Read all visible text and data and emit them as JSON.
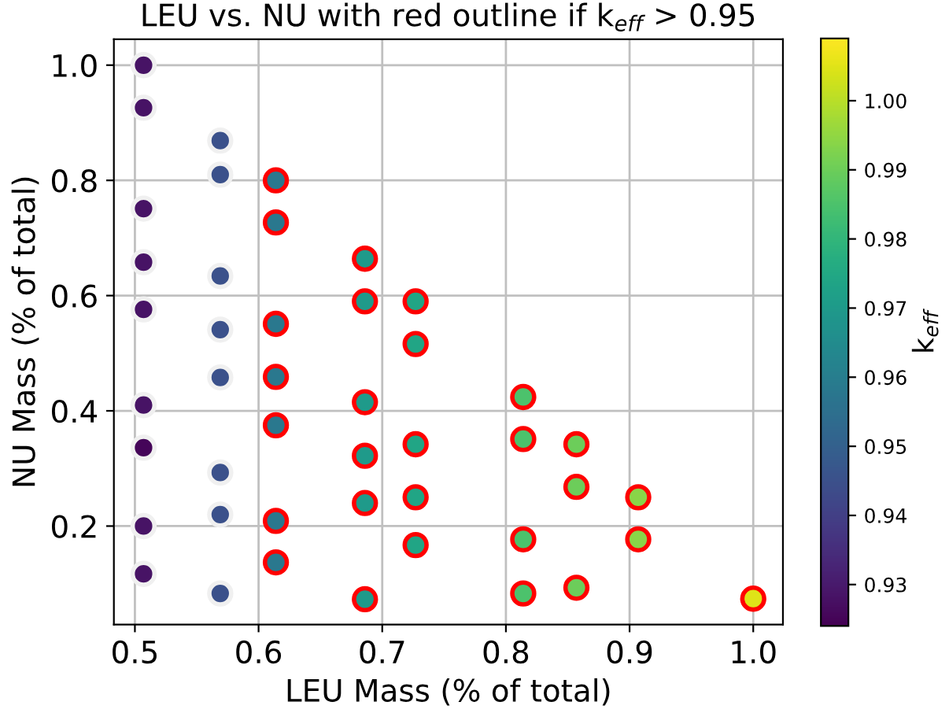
{
  "chart_data": {
    "type": "scatter",
    "title": "LEU vs. NU with red outline if k$_{eff}$ > 0.95",
    "xlabel": "LEU Mass (% of total)",
    "ylabel": "NU Mass (% of total)",
    "clabel": "k$_{eff}$",
    "xlim": [
      0.483,
      1.024
    ],
    "xticks": [
      0.5,
      0.6,
      0.7,
      0.8,
      0.9,
      {
        "value": 1.0,
        "label": "1.0"
      }
    ],
    "ylim": [
      0.029,
      1.045
    ],
    "yticks": [
      0.2,
      0.4,
      0.6,
      0.8,
      {
        "value": 1.0,
        "label": "1.0"
      }
    ],
    "clim": [
      0.924,
      1.009
    ],
    "cticks": [
      0.93,
      0.94,
      0.95,
      0.96,
      0.97,
      0.98,
      0.99,
      {
        "value": 1.0,
        "label": "1.00"
      }
    ],
    "grid": true,
    "marker": "circle",
    "series": [
      {
        "color": "#f0f0f0",
        "x": [
          0.507,
          0.507,
          0.507,
          0.507,
          0.507,
          0.507,
          0.507,
          0.507,
          0.507,
          0.569,
          0.569,
          0.569,
          0.569,
          0.569,
          0.569,
          0.569,
          0.569
        ],
        "values": [
          1.0,
          0.926,
          0.751,
          0.658,
          0.576,
          0.41,
          0.336,
          0.2,
          0.117,
          0.869,
          0.81,
          0.634,
          0.541,
          0.458,
          0.293,
          0.22,
          0.083
        ],
        "cvalues": [
          0.928,
          0.928,
          0.928,
          0.928,
          0.928,
          0.928,
          0.925,
          0.928,
          0.928,
          0.945,
          0.945,
          0.945,
          0.945,
          0.945,
          0.945,
          0.945,
          0.945
        ]
      },
      {
        "color": "#ff0000",
        "x": [
          0.614,
          0.614,
          0.614,
          0.614,
          0.614,
          0.614,
          0.614,
          0.686,
          0.686,
          0.686,
          0.686,
          0.686,
          0.686,
          0.727,
          0.727,
          0.727,
          0.727,
          0.727,
          0.814,
          0.814,
          0.814,
          0.814,
          0.857,
          0.857,
          0.857,
          0.907,
          0.907,
          1.0
        ],
        "values": [
          0.8,
          0.727,
          0.551,
          0.459,
          0.375,
          0.209,
          0.137,
          0.664,
          0.59,
          0.415,
          0.322,
          0.24,
          0.073,
          0.59,
          0.516,
          0.342,
          0.25,
          0.167,
          0.424,
          0.351,
          0.177,
          0.083,
          0.342,
          0.268,
          0.093,
          0.25,
          0.177,
          0.074
        ],
        "cvalues": [
          0.958,
          0.958,
          0.958,
          0.958,
          0.958,
          0.958,
          0.958,
          0.97,
          0.97,
          0.97,
          0.97,
          0.97,
          0.97,
          0.974,
          0.974,
          0.974,
          0.974,
          0.974,
          0.985,
          0.985,
          0.985,
          0.985,
          0.99,
          0.99,
          0.99,
          0.994,
          0.994,
          1.005
        ]
      }
    ]
  }
}
